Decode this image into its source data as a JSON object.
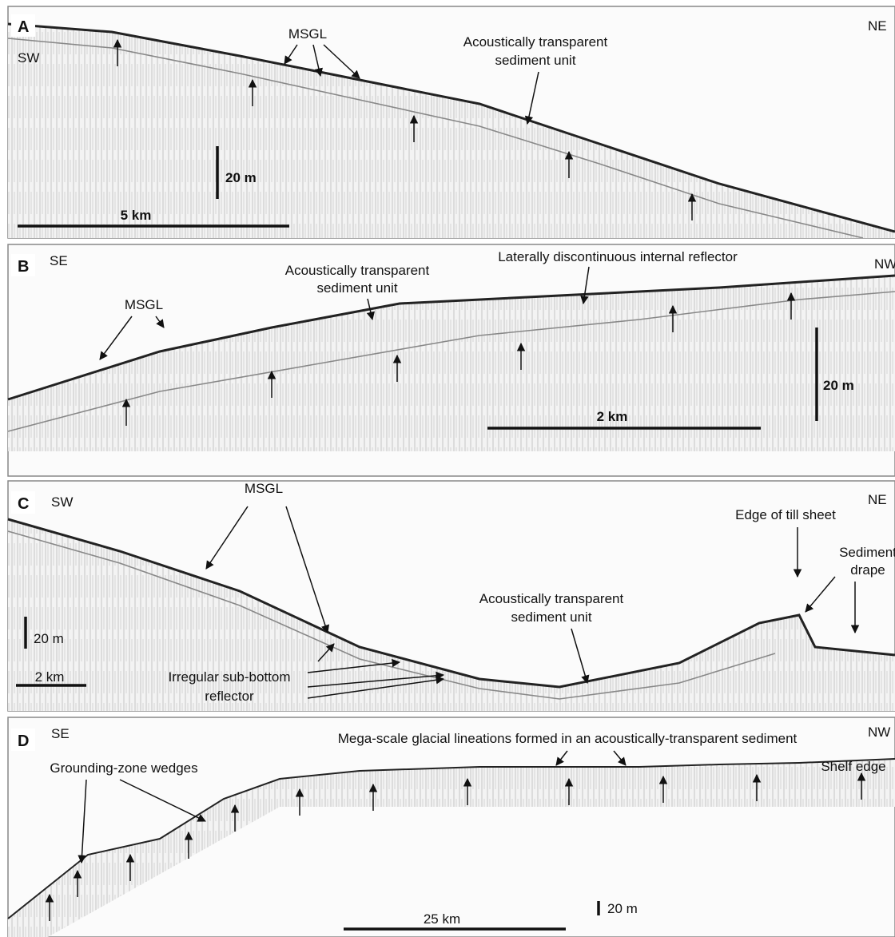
{
  "panels": [
    {
      "label": "A",
      "left": "SW",
      "right": "NE",
      "annotations": [
        [
          "MSGL"
        ],
        [
          "Acoustically transparent",
          "sediment unit"
        ]
      ],
      "scale_vertical": "20 m",
      "scale_horizontal": "5 km"
    },
    {
      "label": "B",
      "left": "SE",
      "right": "NW",
      "annotations": [
        [
          "MSGL"
        ],
        [
          "Acoustically transparent",
          "sediment unit"
        ],
        [
          "Laterally discontinuous internal reflector"
        ]
      ],
      "scale_vertical": "20 m",
      "scale_horizontal": "2 km"
    },
    {
      "label": "C",
      "left": "SW",
      "right": "NE",
      "annotations": [
        [
          "MSGL"
        ],
        [
          "Edge of till sheet"
        ],
        [
          "Sediment",
          "drape"
        ],
        [
          "Acoustically transparent",
          "sediment unit"
        ],
        [
          "Irregular sub-bottom",
          "reflector"
        ]
      ],
      "scale_vertical": "20 m",
      "scale_horizontal": "2 km"
    },
    {
      "label": "D",
      "left": "SE",
      "right": "NW",
      "annotations": [
        [
          "Mega-scale glacial lineations formed in an acoustically-transparent sediment"
        ],
        [
          "Grounding-zone wedges"
        ],
        [
          "Shelf edge"
        ]
      ],
      "scale_vertical": "20 m",
      "scale_horizontal": "25 km"
    }
  ]
}
